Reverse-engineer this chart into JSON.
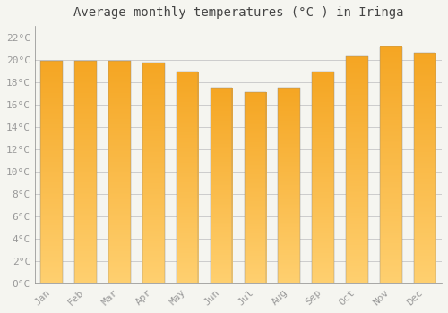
{
  "title": "Average monthly temperatures (°C ) in Iringa",
  "months": [
    "Jan",
    "Feb",
    "Mar",
    "Apr",
    "May",
    "Jun",
    "Jul",
    "Aug",
    "Sep",
    "Oct",
    "Nov",
    "Dec"
  ],
  "values": [
    19.9,
    19.9,
    19.9,
    19.7,
    18.9,
    17.5,
    17.1,
    17.5,
    18.9,
    20.3,
    21.2,
    20.6
  ],
  "bar_color_top": "#F5A623",
  "bar_color_bottom": "#FFD070",
  "background_color": "#F5F5F0",
  "plot_bg_color": "#F5F5F0",
  "grid_color": "#CCCCCC",
  "ytick_labels": [
    "0°C",
    "2°C",
    "4°C",
    "6°C",
    "8°C",
    "10°C",
    "12°C",
    "14°C",
    "16°C",
    "18°C",
    "20°C",
    "22°C"
  ],
  "ytick_values": [
    0,
    2,
    4,
    6,
    8,
    10,
    12,
    14,
    16,
    18,
    20,
    22
  ],
  "ylim": [
    0,
    23
  ],
  "title_fontsize": 10,
  "tick_fontsize": 8,
  "tick_color": "#999999",
  "title_color": "#444444",
  "font_family": "monospace",
  "bar_width": 0.65
}
